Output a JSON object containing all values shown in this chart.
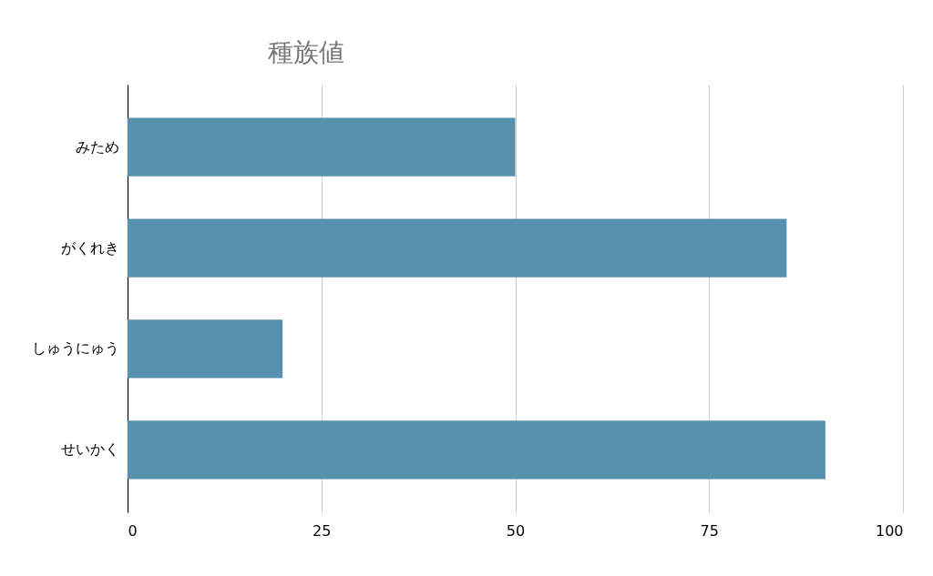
{
  "chart_data": {
    "type": "bar",
    "orientation": "horizontal",
    "title": "種族値",
    "categories": [
      "みため",
      "がくれき",
      "しゅうにゅう",
      "せいかく"
    ],
    "values": [
      50,
      85,
      20,
      90
    ],
    "color": "#5891ad",
    "xlim": [
      0,
      100
    ],
    "xticks": [
      0,
      25,
      50,
      75,
      100
    ],
    "grid": "x"
  }
}
